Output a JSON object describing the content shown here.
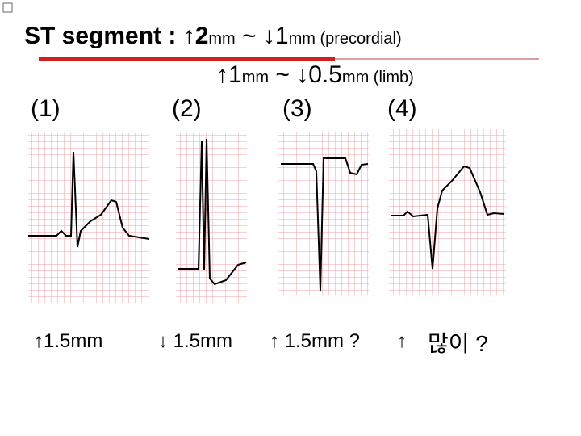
{
  "header": {
    "line1": {
      "parts": [
        "ST segment : ↑2",
        "mm",
        " ~ ↓1",
        "mm",
        " (precordial)"
      ]
    },
    "line2": {
      "parts": [
        "↑1",
        "mm",
        " ~ ↓0.5",
        "mm",
        " (limb)"
      ]
    }
  },
  "panels": [
    {
      "label": "(1)",
      "caption": "↑1.5mm"
    },
    {
      "label": "(2)",
      "caption": "↓ 1.5mm"
    },
    {
      "label": "(3)",
      "caption": "↑ 1.5mm ?"
    },
    {
      "label": "(4)",
      "caption": [
        "↑",
        "많이 ?"
      ]
    }
  ]
}
